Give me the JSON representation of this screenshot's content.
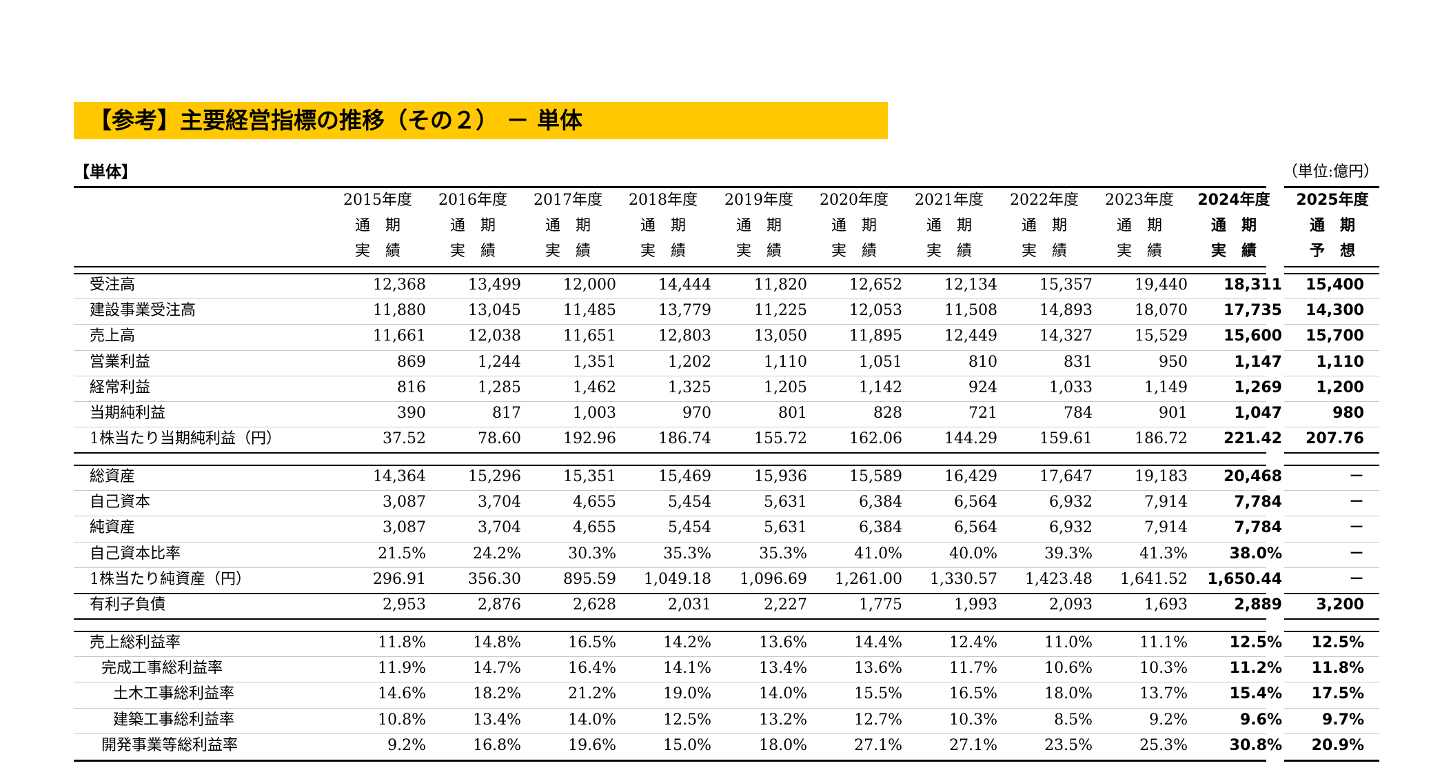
{
  "title": "【参考】主要経営指標の推移（その２） － 単体",
  "section_label": "【単体】",
  "unit_label": "（単位:億円）",
  "colors": {
    "banner": "#FFC800"
  },
  "columns": [
    {
      "year": "2015年度",
      "l2": "通　期",
      "l3": "実　績",
      "bold": false
    },
    {
      "year": "2016年度",
      "l2": "通　期",
      "l3": "実　績",
      "bold": false
    },
    {
      "year": "2017年度",
      "l2": "通　期",
      "l3": "実　績",
      "bold": false
    },
    {
      "year": "2018年度",
      "l2": "通　期",
      "l3": "実　績",
      "bold": false
    },
    {
      "year": "2019年度",
      "l2": "通　期",
      "l3": "実　績",
      "bold": false
    },
    {
      "year": "2020年度",
      "l2": "通　期",
      "l3": "実　績",
      "bold": false
    },
    {
      "year": "2021年度",
      "l2": "通　期",
      "l3": "実　績",
      "bold": false
    },
    {
      "year": "2022年度",
      "l2": "通　期",
      "l3": "実　績",
      "bold": false
    },
    {
      "year": "2023年度",
      "l2": "通　期",
      "l3": "実　績",
      "bold": false
    },
    {
      "year": "2024年度",
      "l2": "通　期",
      "l3": "実　績",
      "bold": true
    },
    {
      "year": "2025年度",
      "l2": "通　期",
      "l3": "予　想",
      "bold": true
    }
  ],
  "groups": [
    {
      "rows": [
        {
          "label": "受注高",
          "indent": 0,
          "values": [
            "12,368",
            "13,499",
            "12,000",
            "14,444",
            "11,820",
            "12,652",
            "12,134",
            "15,357",
            "19,440",
            "18,311",
            "15,400"
          ]
        },
        {
          "label": "建設事業受注高",
          "indent": 0,
          "values": [
            "11,880",
            "13,045",
            "11,485",
            "13,779",
            "11,225",
            "12,053",
            "11,508",
            "14,893",
            "18,070",
            "17,735",
            "14,300"
          ]
        },
        {
          "label": "売上高",
          "indent": 0,
          "values": [
            "11,661",
            "12,038",
            "11,651",
            "12,803",
            "13,050",
            "11,895",
            "12,449",
            "14,327",
            "15,529",
            "15,600",
            "15,700"
          ]
        },
        {
          "label": "営業利益",
          "indent": 0,
          "values": [
            "869",
            "1,244",
            "1,351",
            "1,202",
            "1,110",
            "1,051",
            "810",
            "831",
            "950",
            "1,147",
            "1,110"
          ]
        },
        {
          "label": "経常利益",
          "indent": 0,
          "values": [
            "816",
            "1,285",
            "1,462",
            "1,325",
            "1,205",
            "1,142",
            "924",
            "1,033",
            "1,149",
            "1,269",
            "1,200"
          ]
        },
        {
          "label": "当期純利益",
          "indent": 0,
          "values": [
            "390",
            "817",
            "1,003",
            "970",
            "801",
            "828",
            "721",
            "784",
            "901",
            "1,047",
            "980"
          ]
        },
        {
          "label": "1株当たり当期純利益（円）",
          "indent": 0,
          "values": [
            "37.52",
            "78.60",
            "192.96",
            "186.74",
            "155.72",
            "162.06",
            "144.29",
            "159.61",
            "186.72",
            "221.42",
            "207.76"
          ]
        }
      ]
    },
    {
      "rows": [
        {
          "label": "総資産",
          "indent": 0,
          "values": [
            "14,364",
            "15,296",
            "15,351",
            "15,469",
            "15,936",
            "15,589",
            "16,429",
            "17,647",
            "19,183",
            "20,468",
            "－"
          ]
        },
        {
          "label": "自己資本",
          "indent": 0,
          "values": [
            "3,087",
            "3,704",
            "4,655",
            "5,454",
            "5,631",
            "6,384",
            "6,564",
            "6,932",
            "7,914",
            "7,784",
            "－"
          ]
        },
        {
          "label": "純資産",
          "indent": 0,
          "values": [
            "3,087",
            "3,704",
            "4,655",
            "5,454",
            "5,631",
            "6,384",
            "6,564",
            "6,932",
            "7,914",
            "7,784",
            "－"
          ]
        },
        {
          "label": "自己資本比率",
          "indent": 0,
          "values": [
            "21.5%",
            "24.2%",
            "30.3%",
            "35.3%",
            "35.3%",
            "41.0%",
            "40.0%",
            "39.3%",
            "41.3%",
            "38.0%",
            "－"
          ]
        },
        {
          "label": "1株当たり純資産（円）",
          "indent": 0,
          "values": [
            "296.91",
            "356.30",
            "895.59",
            "1,049.18",
            "1,096.69",
            "1,261.00",
            "1,330.57",
            "1,423.48",
            "1,641.52",
            "1,650.44",
            "－"
          ]
        },
        {
          "label": "有利子負債",
          "indent": 0,
          "values": [
            "2,953",
            "2,876",
            "2,628",
            "2,031",
            "2,227",
            "1,775",
            "1,993",
            "2,093",
            "1,693",
            "2,889",
            "3,200"
          ]
        }
      ]
    },
    {
      "rows": [
        {
          "label": "売上総利益率",
          "indent": 0,
          "values": [
            "11.8%",
            "14.8%",
            "16.5%",
            "14.2%",
            "13.6%",
            "14.4%",
            "12.4%",
            "11.0%",
            "11.1%",
            "12.5%",
            "12.5%"
          ]
        },
        {
          "label": "完成工事総利益率",
          "indent": 1,
          "values": [
            "11.9%",
            "14.7%",
            "16.4%",
            "14.1%",
            "13.4%",
            "13.6%",
            "11.7%",
            "10.6%",
            "10.3%",
            "11.2%",
            "11.8%"
          ]
        },
        {
          "label": "土木工事総利益率",
          "indent": 2,
          "values": [
            "14.6%",
            "18.2%",
            "21.2%",
            "19.0%",
            "14.0%",
            "15.5%",
            "16.5%",
            "18.0%",
            "13.7%",
            "15.4%",
            "17.5%"
          ]
        },
        {
          "label": "建築工事総利益率",
          "indent": 2,
          "values": [
            "10.8%",
            "13.4%",
            "14.0%",
            "12.5%",
            "13.2%",
            "12.7%",
            "10.3%",
            "8.5%",
            "9.2%",
            "9.6%",
            "9.7%"
          ]
        },
        {
          "label": "開発事業等総利益率",
          "indent": 1,
          "values": [
            "9.2%",
            "16.8%",
            "19.6%",
            "15.0%",
            "18.0%",
            "27.1%",
            "27.1%",
            "23.5%",
            "25.3%",
            "30.8%",
            "20.9%"
          ]
        }
      ]
    }
  ]
}
